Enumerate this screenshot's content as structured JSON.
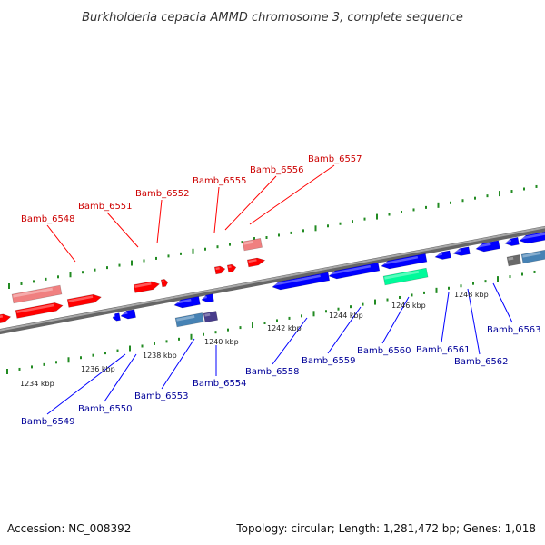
{
  "title": "Burkholderia cepacia AMMD chromosome 3, complete sequence",
  "footer": {
    "accession": "Accession: NC_008392",
    "summary": "Topology: circular; Length: 1,281,472 bp; Genes: 1,018"
  },
  "colors": {
    "forward_gene": "#ff0000",
    "forward_pseudo": "#f08080",
    "reverse_gene": "#0000ff",
    "reverse_steel": "#4682b4",
    "reverse_slate": "#483d8b",
    "reverse_gray": "#696969",
    "reverse_green": "#00fa9a",
    "forward_label": "#cc0000",
    "reverse_label": "#000099",
    "tick": "#228b22",
    "backbone": "#777777"
  },
  "ruler": {
    "ticks": [
      "1234 kbp",
      "1236 kbp",
      "1238 kbp",
      "1240 kbp",
      "1242 kbp",
      "1244 kbp",
      "1246 kbp",
      "1248 kbp"
    ]
  },
  "forward_labels": [
    "Bamb_6548",
    "Bamb_6551",
    "Bamb_6552",
    "Bamb_6555",
    "Bamb_6556",
    "Bamb_6557"
  ],
  "reverse_labels": [
    "Bamb_6549",
    "Bamb_6550",
    "Bamb_6553",
    "Bamb_6554",
    "Bamb_6558",
    "Bamb_6559",
    "Bamb_6560",
    "Bamb_6561",
    "Bamb_6562",
    "Bamb_6563"
  ]
}
